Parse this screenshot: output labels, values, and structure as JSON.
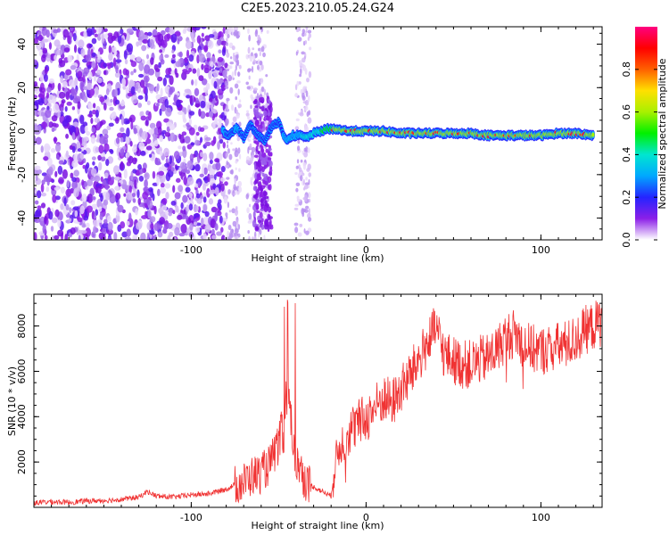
{
  "figure_title": "C2E5.2023.210.05.24.G24",
  "chart_data": [
    {
      "type": "heatmap",
      "xlabel": "Height of straight line (km)",
      "ylabel": "Frequency (Hz)",
      "xlim": [
        -190,
        135
      ],
      "ylim": [
        -50,
        48
      ],
      "x_ticks": [
        -100,
        0,
        100
      ],
      "y_ticks": [
        -40,
        -20,
        0,
        20,
        40
      ],
      "colorbar": {
        "label": "Normalized spectral amplitude",
        "range": [
          0.0,
          1.0
        ],
        "ticks": [
          0.0,
          0.2,
          0.4,
          0.6,
          0.8
        ],
        "colors": [
          "#ffffff",
          "#d8c0f6",
          "#8b1fe8",
          "#2424ff",
          "#00a8ff",
          "#00e6d0",
          "#00f000",
          "#a8f000",
          "#ffe000",
          "#ff6000",
          "#ff0000",
          "#ff0080"
        ]
      },
      "noise_region_x": [
        -190,
        -80
      ],
      "sparse_noise_x": [
        -80,
        -25
      ],
      "signal_track": {
        "x": [
          -82,
          -78,
          -74,
          -70,
          -66,
          -62,
          -58,
          -54,
          -50,
          -46,
          -42,
          -38,
          -34,
          -30,
          -26,
          -22,
          -18,
          -10,
          0,
          10,
          20,
          30,
          40,
          50,
          60,
          70,
          80,
          90,
          100,
          110,
          120,
          130
        ],
        "freq": [
          0,
          -2,
          2,
          -3,
          3,
          -2,
          -4,
          2,
          4,
          -4,
          -2,
          -2,
          -3,
          -1,
          0,
          1,
          1,
          0,
          0,
          0,
          -1,
          -1,
          -1,
          -1,
          -1,
          -2,
          -2,
          -2,
          -2,
          -1,
          -1,
          -2
        ],
        "amplitude": [
          0.35,
          0.3,
          0.35,
          0.3,
          0.25,
          0.3,
          0.25,
          0.3,
          0.3,
          0.35,
          0.4,
          0.45,
          0.5,
          0.55,
          0.6,
          0.7,
          0.75,
          0.8,
          0.85,
          0.8,
          0.75,
          0.75,
          0.75,
          0.8,
          0.85,
          0.8,
          0.85,
          0.85,
          0.85,
          0.8,
          0.8,
          0.8
        ]
      }
    },
    {
      "type": "line",
      "xlabel": "Height of straight line (km)",
      "ylabel": "SNR (10 * v/v)",
      "xlim": [
        -190,
        135
      ],
      "ylim": [
        0,
        9400
      ],
      "x_ticks": [
        -100,
        0,
        100
      ],
      "y_ticks": [
        2000,
        4000,
        6000,
        8000
      ],
      "color": "#f03232",
      "series": [
        {
          "x": [
            -190,
            -180,
            -170,
            -160,
            -150,
            -140,
            -130,
            -125,
            -120,
            -110,
            -100,
            -90,
            -80,
            -75,
            -70,
            -65,
            -60,
            -55,
            -50,
            -47,
            -45,
            -42,
            -40,
            -38,
            -35,
            -30,
            -25,
            -20,
            -18,
            -15,
            -10,
            -5,
            0,
            5,
            10,
            15,
            20,
            25,
            30,
            35,
            40,
            45,
            50,
            55,
            60,
            65,
            70,
            75,
            80,
            85,
            90,
            95,
            100,
            105,
            110,
            115,
            120,
            125,
            130,
            135
          ],
          "y": [
            200,
            250,
            220,
            280,
            300,
            350,
            450,
            700,
            500,
            450,
            550,
            600,
            800,
            1000,
            1100,
            1400,
            1500,
            1900,
            2800,
            3500,
            5200,
            3200,
            2000,
            1800,
            1200,
            900,
            700,
            500,
            1800,
            2700,
            3300,
            3700,
            3900,
            4400,
            4800,
            4600,
            5200,
            5800,
            6500,
            7200,
            7900,
            6700,
            6500,
            6300,
            6300,
            6500,
            6600,
            7000,
            7500,
            7700,
            7200,
            7000,
            6900,
            7000,
            7100,
            7200,
            7400,
            7800,
            8000,
            8200
          ]
        }
      ]
    }
  ]
}
